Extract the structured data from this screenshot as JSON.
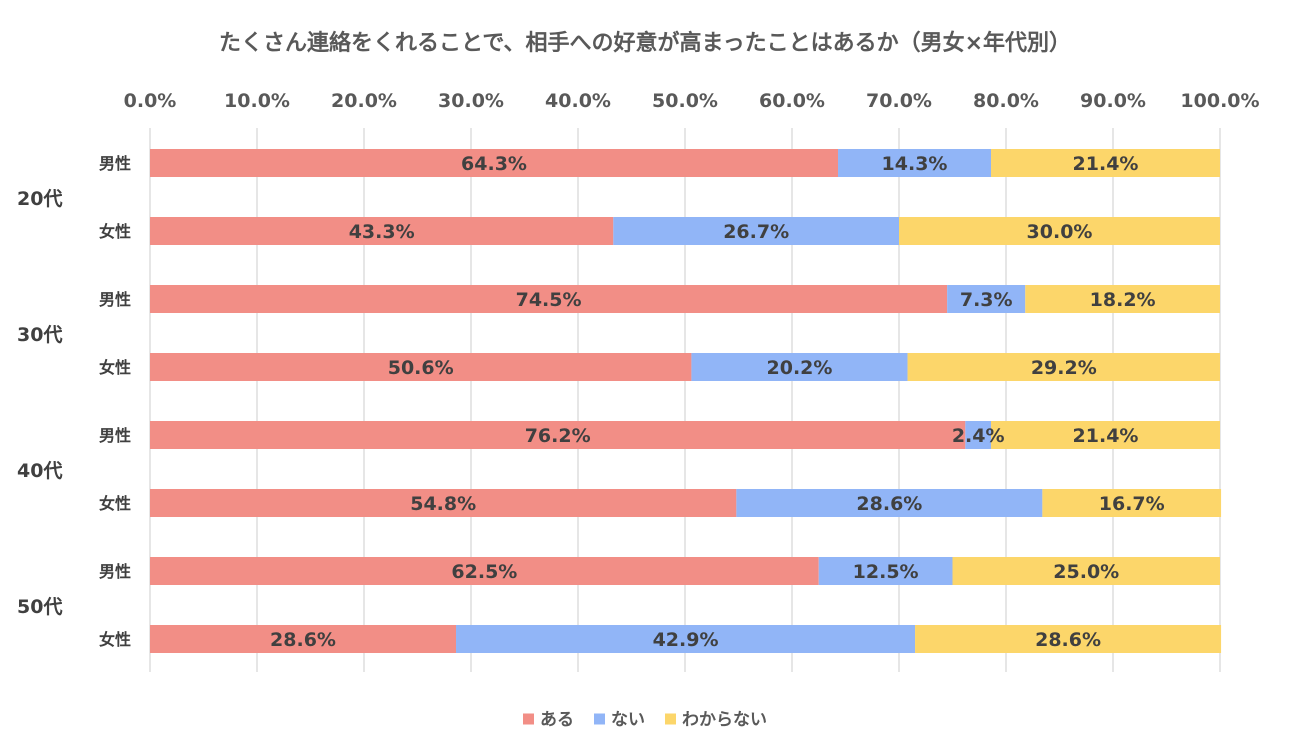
{
  "chart_data": {
    "type": "bar",
    "orientation": "horizontal",
    "stacked": "percent",
    "title": "たくさん連絡をくれることで、相手への好意が高まったことはあるか（男女×年代別）",
    "xlim": [
      0,
      100
    ],
    "x_ticks": [
      "0.0%",
      "10.0%",
      "20.0%",
      "30.0%",
      "40.0%",
      "50.0%",
      "60.0%",
      "70.0%",
      "80.0%",
      "90.0%",
      "100.0%"
    ],
    "x_tick_position": "top",
    "grid": true,
    "legend_position": "bottom",
    "groups": [
      {
        "label": "20代",
        "rows": [
          "男性",
          "女性"
        ]
      },
      {
        "label": "30代",
        "rows": [
          "男性",
          "女性"
        ]
      },
      {
        "label": "40代",
        "rows": [
          "男性",
          "女性"
        ]
      },
      {
        "label": "50代",
        "rows": [
          "男性",
          "女性"
        ]
      }
    ],
    "series": [
      {
        "name": "ある",
        "color": "#F28E86",
        "values": [
          64.3,
          43.3,
          74.5,
          50.6,
          76.2,
          54.8,
          62.5,
          28.6
        ],
        "labels": [
          "64.3%",
          "43.3%",
          "74.5%",
          "50.6%",
          "76.2%",
          "54.8%",
          "62.5%",
          "28.6%"
        ]
      },
      {
        "name": "ない",
        "color": "#91B5F7",
        "values": [
          14.3,
          26.7,
          7.3,
          20.2,
          2.4,
          28.6,
          12.5,
          42.9
        ],
        "labels": [
          "14.3%",
          "26.7%",
          "7.3%",
          "20.2%",
          "2.4%",
          "28.6%",
          "12.5%",
          "42.9%"
        ]
      },
      {
        "name": "わからない",
        "color": "#FCD66A",
        "values": [
          21.4,
          30.0,
          18.2,
          29.2,
          21.4,
          16.7,
          25.0,
          28.6
        ],
        "labels": [
          "21.4%",
          "30.0%",
          "18.2%",
          "29.2%",
          "21.4%",
          "16.7%",
          "25.0%",
          "28.6%"
        ]
      }
    ]
  }
}
